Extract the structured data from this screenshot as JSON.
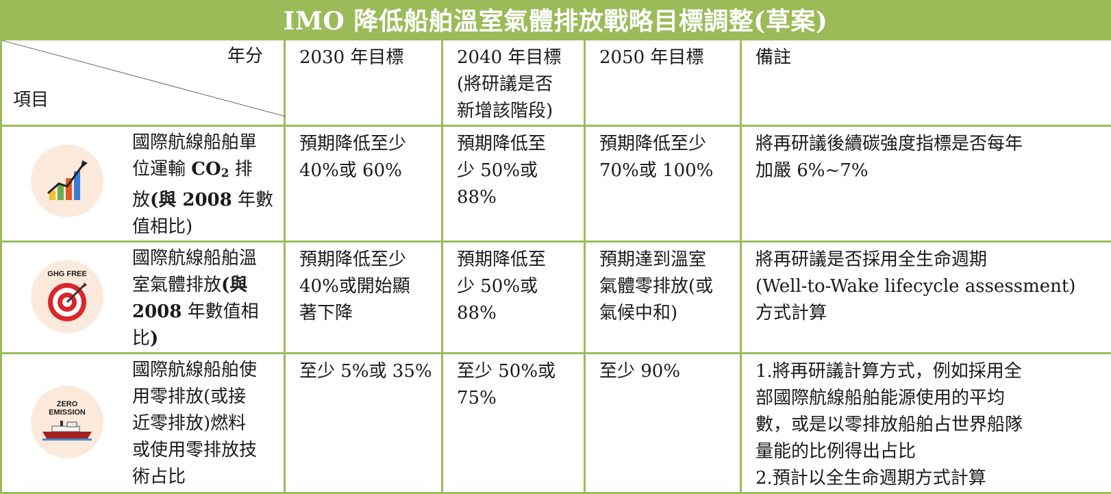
{
  "title": "IMO 降低船舶溫室氣體排放戰略目標調整(草案)",
  "header": {
    "corner_year": "年分",
    "corner_item": "項目",
    "col_2030": "2030 年目標",
    "col_2040": "2040 年目標\n(將研議是否\n新增該階段)",
    "col_2050": "2050 年目標",
    "col_note": "備註"
  },
  "rows": [
    {
      "icon": "growth-chart-icon",
      "item_part1": "國際航線船舶單\n位運輸 ",
      "item_co2_a": "CO",
      "item_co2_sub": "2",
      "item_part2": " 排\n放",
      "item_part3": "(與 2008",
      "item_part4": " 年數\n值相比)",
      "y2030": "預期降低至少\n40%或 60%",
      "y2040": "預期降低至\n少 50%或\n88%",
      "y2050": "預期降低至少\n70%或 100%",
      "note": "將再研議後續碳強度指標是否每年\n加嚴 6%~7%"
    },
    {
      "icon": "target-icon",
      "icon_label": "GHG FREE",
      "item_part1": "國際航線船舶溫\n室氣體排放",
      "item_part2": "(與\n2008",
      "item_part3": " 年數值相\n比",
      "item_part4": ")",
      "y2030": "預期降低至少\n40%或開始顯\n著下降",
      "y2040": "預期降低至\n少 50%或\n88%",
      "y2050": "預期達到溫室\n氣體零排放(或\n氣候中和)",
      "note": "將再研議是否採用全生命週期\n(Well-to-Wake lifecycle assessment)\n方式計算"
    },
    {
      "icon": "ship-icon",
      "icon_label_1": "ZERO",
      "icon_label_2": "EMISSION",
      "item_text": "國際航線船舶使\n用零排放(或接\n近零排放)燃料\n或使用零排放技\n術占比",
      "y2030": "至少 5%或 35%",
      "y2040": "至少 50%或\n75%",
      "y2050": "至少 90%",
      "note": "1.將再研議計算方式，例如採用全\n部國際航線船舶能源使用的平均\n數，或是以零排放船舶占世界船隊\n量能的比例得出占比\n2.預計以全生命週期方式計算"
    }
  ],
  "colors": {
    "accent_green": "#9bbb59",
    "icon_bg": "#fbe9dc",
    "target_red": "#d9262c",
    "ship_hull": "#a32020"
  }
}
